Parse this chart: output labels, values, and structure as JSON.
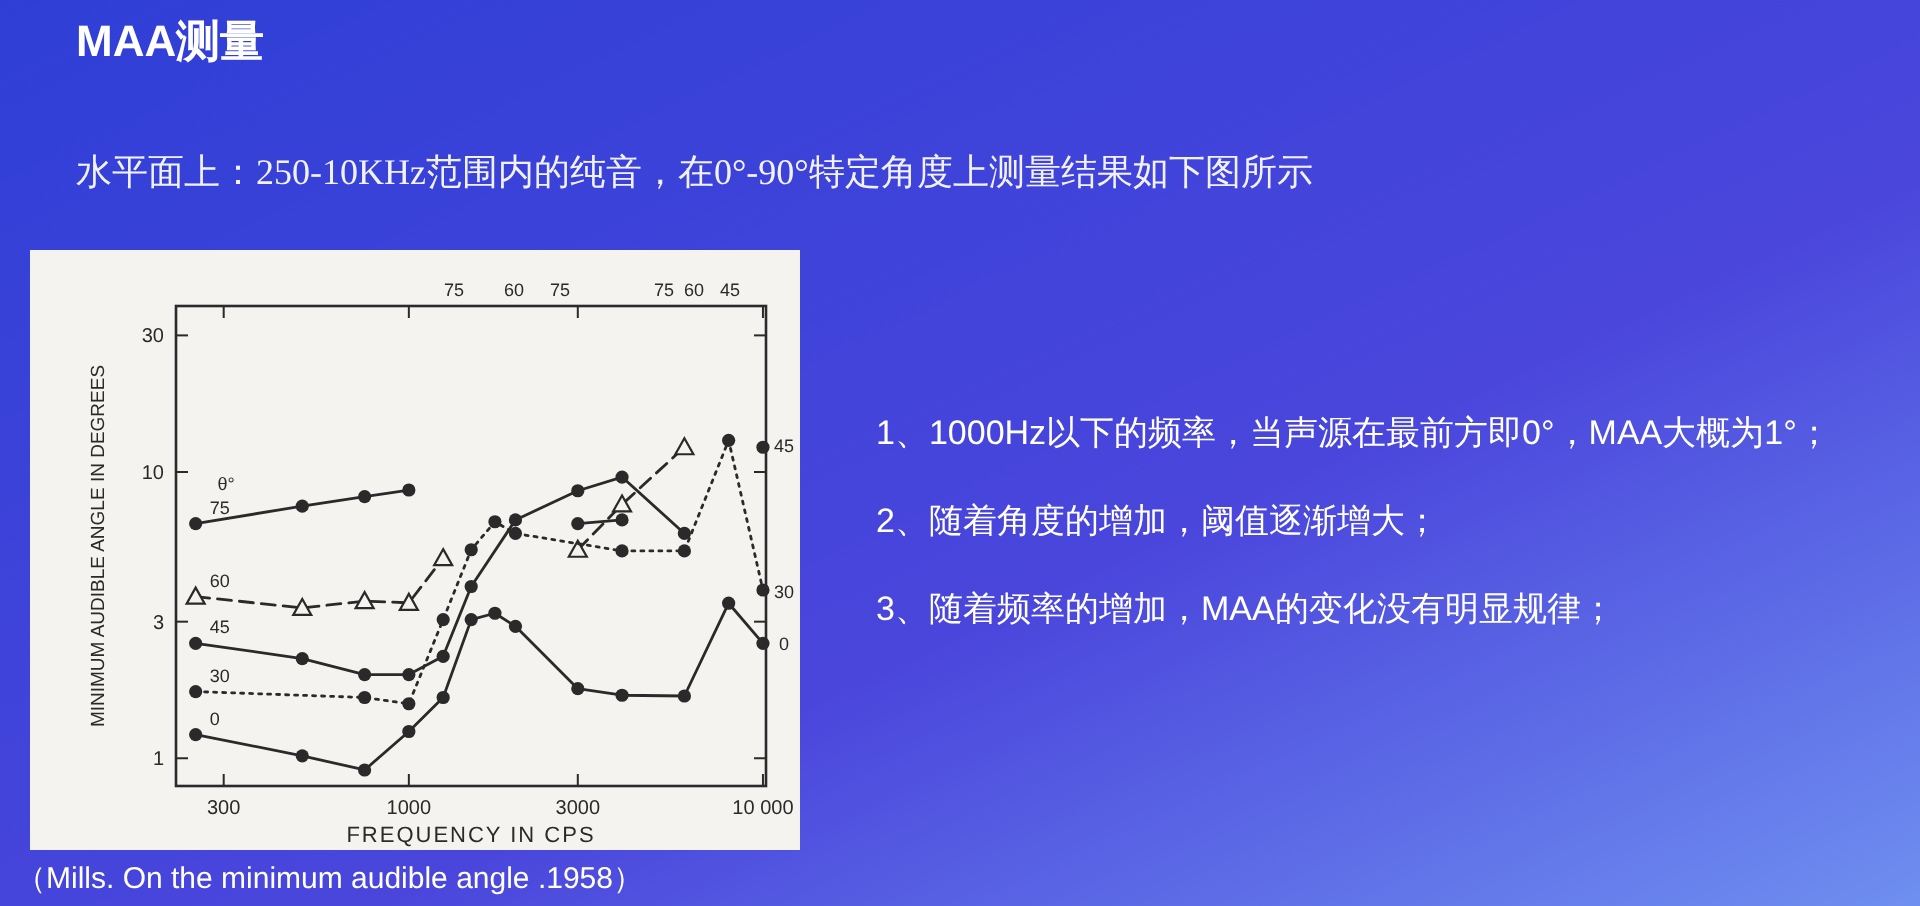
{
  "chart_data": {
    "type": "line",
    "title": "MAA测量",
    "subtitle": "水平面上：250-10KHz范围内的纯音，在0°-90°特定角度上测量结果如下图所示",
    "xlabel": "FREQUENCY IN CPS",
    "ylabel": "MINIMUM AUDIBLE ANGLE IN DEGREES",
    "log": "xy",
    "xlim": [
      220,
      10200
    ],
    "ylim": [
      0.8,
      38
    ],
    "xticks": [
      300,
      1000,
      3000,
      {
        "value": 10000,
        "label": "10 000"
      }
    ],
    "yticks": [
      1,
      3,
      10,
      30
    ],
    "grid": false,
    "legend": "left",
    "series": [
      {
        "name": "75",
        "color": "#2a2a2a",
        "marker": "circle",
        "line_style": "solid",
        "x": [
          250,
          500,
          750,
          1000
        ],
        "values": [
          6.6,
          7.6,
          8.2,
          8.65
        ]
      },
      {
        "color": "#2a2a2a",
        "marker": "circle",
        "line_style": "solid",
        "x": [
          3000,
          4000
        ],
        "values": [
          6.6,
          6.8
        ]
      },
      {
        "name": "60",
        "color": "#2a2a2a",
        "marker": "triangle",
        "line_style": "dashed",
        "x": [
          250,
          500,
          750,
          1000,
          1250
        ],
        "values": [
          3.67,
          3.35,
          3.54,
          3.49,
          5.0
        ]
      },
      {
        "color": "#2a2a2a",
        "marker": "triangle",
        "line_style": "dashed",
        "x": [
          3000,
          4000,
          6000
        ],
        "values": [
          5.35,
          7.7,
          12.2
        ]
      },
      {
        "name": "45",
        "color": "#2a2a2a",
        "marker": "circle",
        "line_style": "solid",
        "x": [
          250,
          500,
          750,
          1000,
          1250,
          1500,
          2000,
          3000,
          4000,
          6000
        ],
        "values": [
          2.52,
          2.23,
          1.96,
          1.96,
          2.27,
          3.98,
          6.8,
          8.6,
          9.6,
          6.1
        ]
      },
      {
        "color": "#2a2a2a",
        "marker": "circle",
        "line_style": "solid",
        "x": [
          10000
        ],
        "values": [
          12.2
        ]
      },
      {
        "name": "30",
        "color": "#2a2a2a",
        "marker": "circle",
        "line_style": "dotted",
        "x": [
          250,
          750,
          1000,
          1250,
          1500,
          1750,
          2000,
          4000,
          6000,
          8000,
          10000
        ],
        "values": [
          1.71,
          1.63,
          1.55,
          3.05,
          5.35,
          6.7,
          6.1,
          5.3,
          5.3,
          12.9,
          3.87
        ]
      },
      {
        "name": "0",
        "color": "#2a2a2a",
        "marker": "circle",
        "line_style": "solid",
        "x": [
          250,
          500,
          750,
          1000,
          1250,
          1500,
          1750,
          2000,
          3000,
          4000,
          6000,
          8000,
          10000
        ],
        "values": [
          1.21,
          1.02,
          0.91,
          1.24,
          1.63,
          3.05,
          3.21,
          2.89,
          1.75,
          1.66,
          1.65,
          3.48,
          2.52
        ]
      }
    ],
    "annotations": [
      "1、1000Hz以下的频率，当声源在最前方即0°，MAA大概为1°；",
      "2、随着角度的增加，阈值逐渐增大；",
      "3、随着频率的增加，MAA的变化没有明显规律；",
      "（Mills. On the minimum audible angle .1958）",
      "θ°",
      "75",
      "60",
      "75",
      "75",
      "60",
      "45",
      "45",
      "30",
      "0"
    ]
  }
}
